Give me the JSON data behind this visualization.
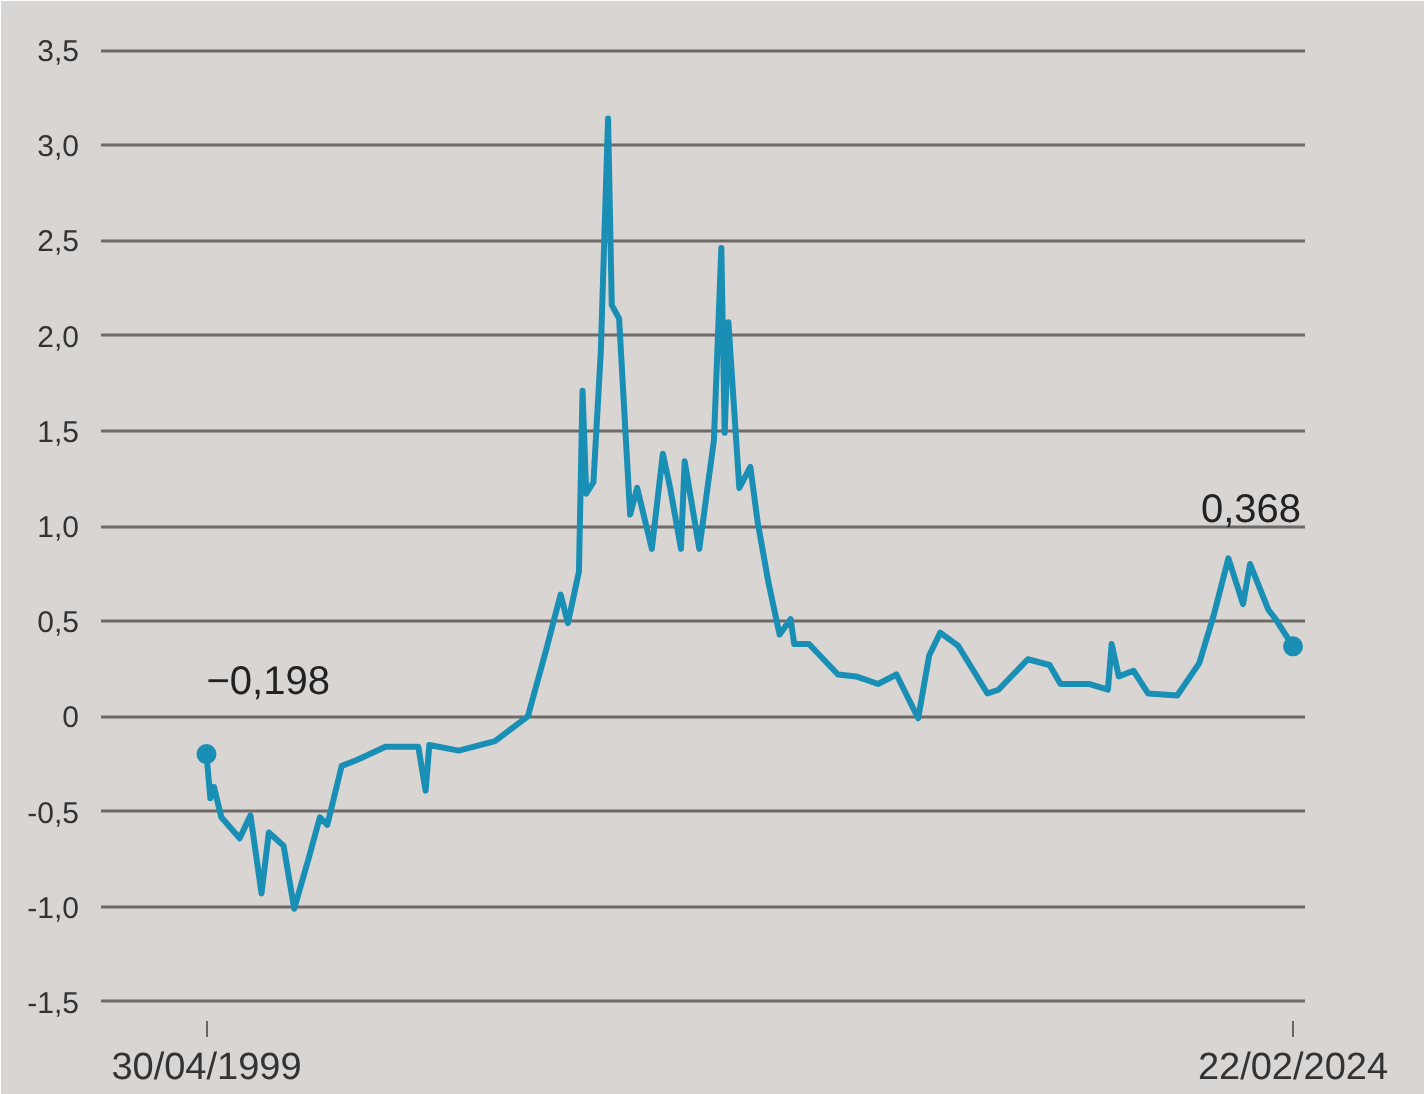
{
  "chart_data": {
    "type": "line",
    "x": [
      "1999-04-30",
      "1999-06",
      "1999-07",
      "1999-09",
      "2000-02",
      "2000-05",
      "2000-08",
      "2000-10",
      "2001-02",
      "2001-05",
      "2001-09",
      "2001-12",
      "2002-02",
      "2002-06",
      "2002-10",
      "2003-06",
      "2004-03",
      "2004-05",
      "2004-06",
      "2005-02",
      "2005-12",
      "2006-09",
      "2006-11",
      "2007-02",
      "2007-06",
      "2007-08",
      "2007-11",
      "2007-12",
      "2008-01",
      "2008-03",
      "2008-05",
      "2008-07",
      "2008-08",
      "2008-10",
      "2009-01",
      "2009-03",
      "2009-07",
      "2009-10",
      "2009-12",
      "2010-03",
      "2010-04",
      "2010-08",
      "2010-12",
      "2011-02",
      "2011-03",
      "2011-04",
      "2011-07",
      "2011-10",
      "2011-12",
      "2012-03",
      "2012-06",
      "2012-09",
      "2012-10",
      "2013-02",
      "2013-10",
      "2014-03",
      "2014-09",
      "2015-02",
      "2015-08",
      "2015-11",
      "2016-02",
      "2016-07",
      "2017-03",
      "2017-06",
      "2018-02",
      "2018-08",
      "2018-11",
      "2019-07",
      "2019-12",
      "2020-01",
      "2020-03",
      "2020-07",
      "2020-11",
      "2021-07",
      "2022-01",
      "2022-05",
      "2022-09",
      "2023-01",
      "2023-03",
      "2023-08",
      "2023-10",
      "2024-02-22"
    ],
    "series": [
      {
        "color": "#1a8fb5",
        "values": [
          -0.198,
          -0.43,
          -0.37,
          -0.53,
          -0.64,
          -0.52,
          -0.93,
          -0.61,
          -0.68,
          -1.01,
          -0.74,
          -0.53,
          -0.57,
          -0.26,
          -0.23,
          -0.16,
          -0.16,
          -0.39,
          -0.15,
          -0.18,
          -0.13,
          0.0,
          0.14,
          0.35,
          0.64,
          0.49,
          0.76,
          1.71,
          1.17,
          1.23,
          1.91,
          3.14,
          2.16,
          2.09,
          1.06,
          1.2,
          0.88,
          1.38,
          1.2,
          0.88,
          1.34,
          0.88,
          1.45,
          2.46,
          1.49,
          2.07,
          1.2,
          1.31,
          1.02,
          0.7,
          0.43,
          0.51,
          0.38,
          0.38,
          0.22,
          0.21,
          0.17,
          0.22,
          -0.01,
          0.32,
          0.44,
          0.37,
          0.12,
          0.14,
          0.3,
          0.27,
          0.17,
          0.17,
          0.14,
          0.38,
          0.21,
          0.24,
          0.12,
          0.11,
          0.28,
          0.53,
          0.83,
          0.59,
          0.8,
          0.56,
          0.51,
          0.368
        ]
      }
    ],
    "xlim": [
      "1996-12",
      "2024-06"
    ],
    "xticks": [
      {
        "value": "1999-04-30",
        "label": "30/04/1999"
      },
      {
        "value": "2024-02-22",
        "label": "22/02/2024"
      }
    ],
    "ylim": [
      -1.6,
      3.6
    ],
    "yticks": [
      {
        "value": -1.5,
        "label": "-1,5"
      },
      {
        "value": -1.0,
        "label": "-1,0"
      },
      {
        "value": -0.5,
        "label": "-0,5"
      },
      0,
      {
        "value": 0.5,
        "label": "0,5"
      },
      {
        "value": 1.0,
        "label": "1,0"
      },
      {
        "value": 1.5,
        "label": "1,5"
      },
      {
        "value": 2.0,
        "label": "2,0"
      },
      {
        "value": 2.5,
        "label": "2,5"
      },
      {
        "value": 3.0,
        "label": "3,0"
      },
      {
        "value": 3.5,
        "label": "3,5"
      }
    ],
    "grid": "y",
    "annotations": [
      {
        "text": "−0,198",
        "x": "1999-04-30",
        "y": -0.198
      },
      {
        "text": "0,368",
        "x": "2024-02-22",
        "y": 0.368
      }
    ]
  }
}
